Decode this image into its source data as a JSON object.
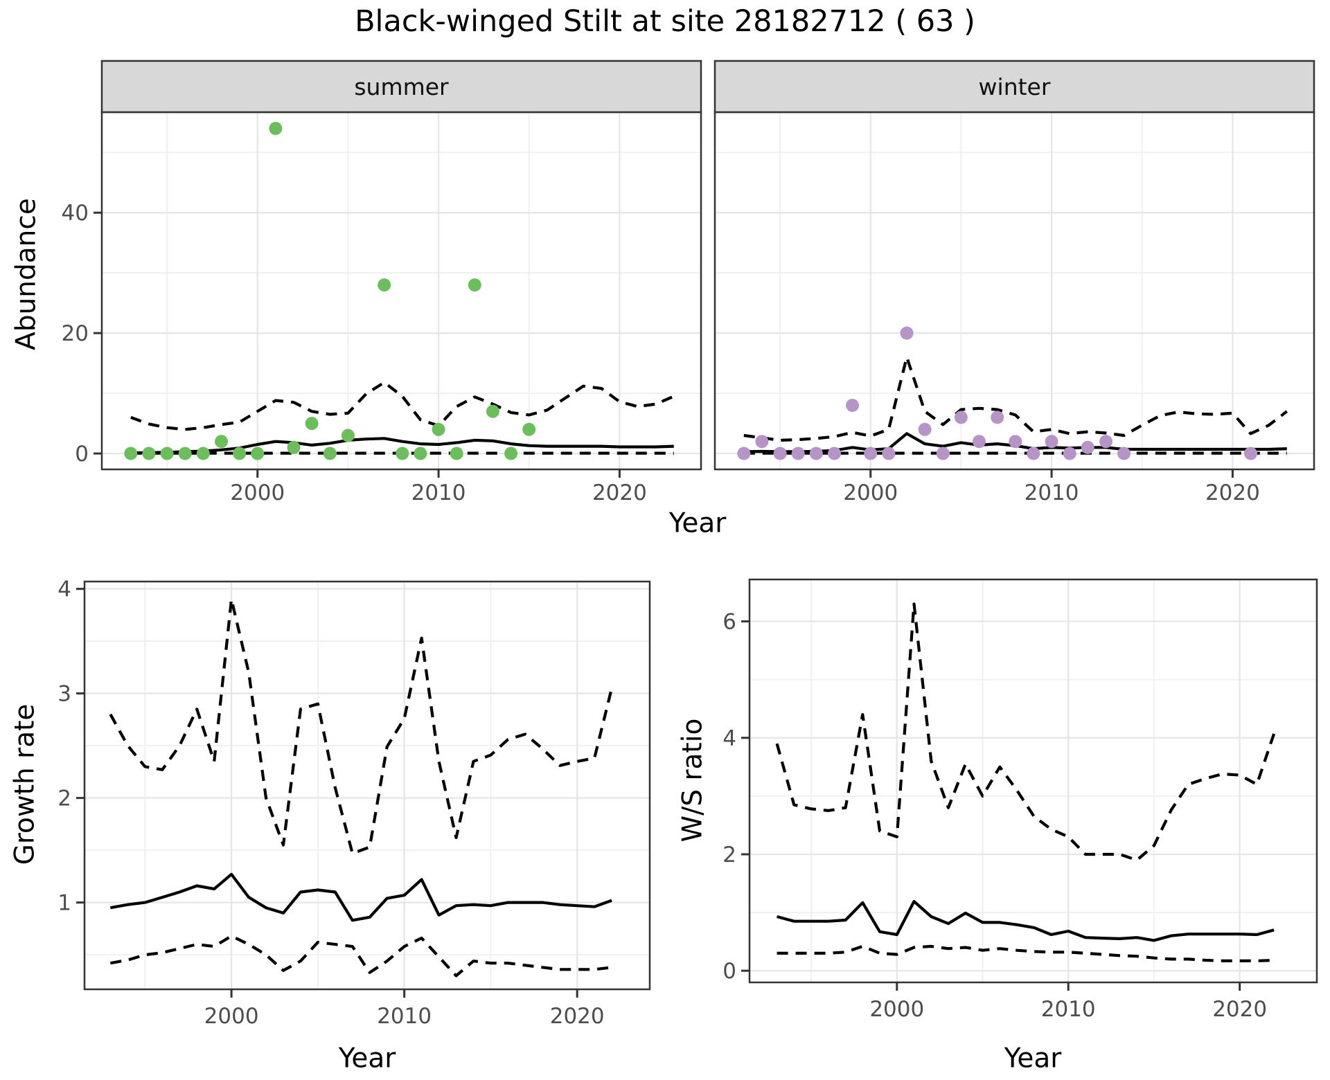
{
  "title": "Black-winged Stilt at site 28182712 ( 63 )",
  "labels": {
    "abundance": "Abundance",
    "year": "Year",
    "growth": "Growth rate",
    "ws": "W/S ratio"
  },
  "colors": {
    "summer_point": "#6bbe5b",
    "winter_point": "#b694c8",
    "line": "#000000",
    "grid_major": "#e5e5e5",
    "grid_minor": "#efefef",
    "border": "#333333",
    "strip_bg": "#d8d8d8",
    "strip_text": "#111111",
    "tick_label": "#4d4d4d"
  },
  "chart_data": [
    {
      "id": "abundance-summer",
      "type": "scatter",
      "facet_label": "summer",
      "xlabel": "Year",
      "ylabel": "Abundance",
      "xlim": [
        1991.4,
        2024.5
      ],
      "ylim": [
        -2.64,
        56.7
      ],
      "xticks": [
        2000,
        2010,
        2020
      ],
      "yticks": [
        0,
        20,
        40
      ],
      "xminor": [
        1995,
        2005,
        2015
      ],
      "yminor": [
        10,
        30,
        50
      ],
      "legend": "none",
      "grid": true,
      "point_color": "#6bbe5b",
      "points": {
        "years": [
          1993,
          1994,
          1995,
          1996,
          1997,
          1998,
          1999,
          2000,
          2001,
          2002,
          2003,
          2004,
          2005,
          2007,
          2008,
          2009,
          2010,
          2011,
          2012,
          2013,
          2014,
          2015
        ],
        "values": [
          0,
          0,
          0,
          0,
          0,
          2,
          0,
          0,
          54,
          1,
          5,
          0,
          3,
          28,
          0,
          0,
          4,
          0,
          28,
          7,
          0,
          4
        ]
      },
      "lines": {
        "year_start": 1993,
        "mean": [
          0.1,
          0.15,
          0.2,
          0.3,
          0.4,
          0.6,
          0.9,
          1.5,
          2.0,
          1.8,
          1.4,
          1.7,
          2.2,
          2.4,
          2.5,
          2.0,
          1.6,
          1.5,
          1.8,
          2.2,
          2.1,
          1.6,
          1.3,
          1.2,
          1.2,
          1.2,
          1.2,
          1.1,
          1.1,
          1.1,
          1.2
        ],
        "upper": [
          6.0,
          4.9,
          4.3,
          4.0,
          4.3,
          4.8,
          5.2,
          7.0,
          8.8,
          8.5,
          7.0,
          6.5,
          6.7,
          9.9,
          11.8,
          9.5,
          5.6,
          4.6,
          7.8,
          9.4,
          8.2,
          6.8,
          6.4,
          7.2,
          9.2,
          11.2,
          10.8,
          8.6,
          7.8,
          8.2,
          9.5
        ],
        "lower": [
          0.05,
          0.05,
          0.05,
          0.05,
          0.05,
          0.05,
          0.05,
          0.05,
          0.05,
          0.05,
          0.05,
          0.05,
          0.05,
          0.05,
          0.05,
          0.05,
          0.05,
          0.05,
          0.05,
          0.05,
          0.05,
          0.05,
          0.05,
          0.05,
          0.05,
          0.05,
          0.05,
          0.05,
          0.05,
          0.05,
          0.05
        ]
      }
    },
    {
      "id": "abundance-winter",
      "type": "scatter",
      "facet_label": "winter",
      "xlabel": "Year",
      "ylabel": "Abundance",
      "xlim": [
        1991.4,
        2024.5
      ],
      "ylim": [
        -2.64,
        56.7
      ],
      "xticks": [
        2000,
        2010,
        2020
      ],
      "yticks": [
        0,
        20,
        40
      ],
      "xminor": [
        1995,
        2005,
        2015
      ],
      "yminor": [
        10,
        30,
        50
      ],
      "legend": "none",
      "grid": true,
      "point_color": "#b694c8",
      "points": {
        "years": [
          1993,
          1994,
          1995,
          1996,
          1997,
          1998,
          1999,
          2000,
          2001,
          2002,
          2003,
          2004,
          2005,
          2006,
          2007,
          2008,
          2009,
          2010,
          2011,
          2012,
          2013,
          2014,
          2021
        ],
        "values": [
          0,
          2,
          0,
          0,
          0,
          0,
          8,
          0,
          0,
          20,
          4,
          0,
          6,
          2,
          6,
          2,
          0,
          2,
          0,
          1,
          2,
          0,
          0
        ]
      },
      "lines": {
        "year_start": 1993,
        "mean": [
          0.3,
          0.35,
          0.3,
          0.3,
          0.35,
          0.5,
          1.0,
          0.6,
          0.8,
          3.3,
          1.6,
          1.2,
          1.8,
          1.4,
          1.6,
          1.3,
          0.8,
          1.0,
          0.9,
          1.0,
          1.0,
          0.7,
          0.7,
          0.7,
          0.7,
          0.7,
          0.7,
          0.7,
          0.7,
          0.7,
          0.8
        ],
        "upper": [
          3.0,
          2.6,
          2.2,
          2.3,
          2.5,
          2.8,
          3.5,
          2.9,
          4.0,
          16.0,
          7.0,
          4.8,
          7.3,
          7.5,
          7.3,
          6.4,
          3.6,
          4.0,
          3.3,
          3.6,
          3.4,
          3.0,
          4.7,
          6.3,
          6.9,
          6.6,
          6.5,
          6.7,
          3.3,
          4.7,
          7.0
        ],
        "lower": [
          0.05,
          0.05,
          0.05,
          0.05,
          0.05,
          0.05,
          0.05,
          0.05,
          0.05,
          0.05,
          0.05,
          0.05,
          0.05,
          0.05,
          0.05,
          0.05,
          0.05,
          0.05,
          0.05,
          0.05,
          0.05,
          0.05,
          0.05,
          0.05,
          0.05,
          0.05,
          0.05,
          0.05,
          0.05,
          0.05,
          0.05
        ]
      }
    },
    {
      "id": "growth-rate",
      "type": "line",
      "facet_label": null,
      "xlabel": "Year",
      "ylabel": "Growth rate",
      "xlim": [
        1991.5,
        2024.2
      ],
      "ylim": [
        0.17,
        4.07
      ],
      "xticks": [
        2000,
        2010,
        2020
      ],
      "yticks": [
        1,
        2,
        3,
        4
      ],
      "xminor": [
        1995,
        2005,
        2015
      ],
      "yminor": [
        0.5,
        1.5,
        2.5,
        3.5
      ],
      "legend": "none",
      "grid": true,
      "lines": {
        "year_start": 1993,
        "mean": [
          0.95,
          0.98,
          1.0,
          1.05,
          1.1,
          1.16,
          1.13,
          1.27,
          1.05,
          0.95,
          0.9,
          1.1,
          1.12,
          1.1,
          0.83,
          0.86,
          1.04,
          1.07,
          1.22,
          0.88,
          0.97,
          0.98,
          0.97,
          1.0,
          1.0,
          1.0,
          0.98,
          0.97,
          0.96,
          1.02
        ],
        "upper": [
          2.8,
          2.5,
          2.3,
          2.27,
          2.5,
          2.85,
          2.35,
          3.9,
          3.2,
          2.0,
          1.55,
          2.85,
          2.9,
          2.1,
          1.47,
          1.53,
          2.49,
          2.76,
          3.53,
          2.35,
          1.62,
          2.35,
          2.41,
          2.56,
          2.61,
          2.47,
          2.31,
          2.35,
          2.38,
          3.05
        ],
        "lower": [
          0.42,
          0.45,
          0.5,
          0.52,
          0.56,
          0.6,
          0.58,
          0.68,
          0.6,
          0.5,
          0.35,
          0.44,
          0.62,
          0.6,
          0.58,
          0.33,
          0.44,
          0.58,
          0.66,
          0.48,
          0.3,
          0.44,
          0.42,
          0.42,
          0.4,
          0.38,
          0.36,
          0.36,
          0.36,
          0.38
        ]
      }
    },
    {
      "id": "ws-ratio",
      "type": "line",
      "facet_label": null,
      "xlabel": "Year",
      "ylabel": "W/S ratio",
      "xlim": [
        1991.4,
        2024.5
      ],
      "ylim": [
        -0.2,
        6.72
      ],
      "xticks": [
        2000,
        2010,
        2020
      ],
      "yticks": [
        0,
        2,
        4,
        6
      ],
      "xminor": [
        1995,
        2005,
        2015
      ],
      "yminor": [
        1,
        3,
        5
      ],
      "legend": "none",
      "grid": true,
      "lines": {
        "year_start": 1993,
        "mean": [
          0.93,
          0.85,
          0.85,
          0.85,
          0.87,
          1.17,
          0.67,
          0.62,
          1.19,
          0.93,
          0.81,
          0.99,
          0.83,
          0.83,
          0.79,
          0.74,
          0.62,
          0.68,
          0.57,
          0.56,
          0.55,
          0.57,
          0.52,
          0.6,
          0.63,
          0.63,
          0.63,
          0.63,
          0.62,
          0.7
        ],
        "upper": [
          3.9,
          2.85,
          2.78,
          2.75,
          2.8,
          4.4,
          2.4,
          2.3,
          6.3,
          3.6,
          2.8,
          3.55,
          3.0,
          3.5,
          3.1,
          2.65,
          2.43,
          2.3,
          2.0,
          2.0,
          2.0,
          1.9,
          2.15,
          2.76,
          3.2,
          3.3,
          3.38,
          3.36,
          3.2,
          4.07
        ],
        "lower": [
          0.3,
          0.3,
          0.3,
          0.3,
          0.32,
          0.42,
          0.3,
          0.28,
          0.4,
          0.42,
          0.38,
          0.4,
          0.35,
          0.38,
          0.35,
          0.33,
          0.32,
          0.32,
          0.3,
          0.28,
          0.26,
          0.25,
          0.22,
          0.2,
          0.2,
          0.18,
          0.17,
          0.17,
          0.17,
          0.18
        ]
      }
    }
  ]
}
